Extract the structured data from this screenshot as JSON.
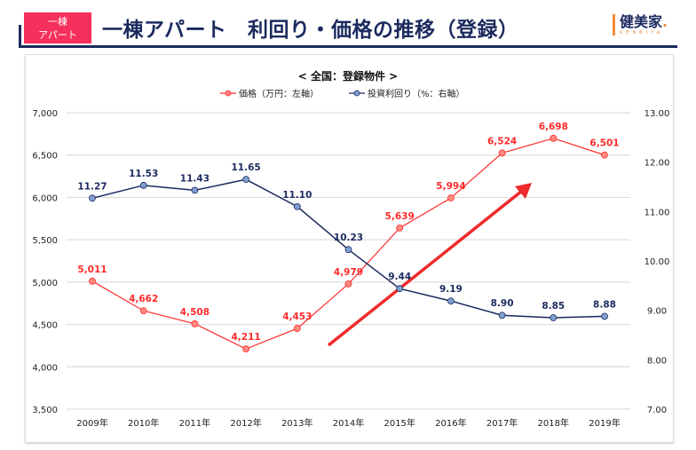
{
  "header": {
    "badge_line1": "一棟",
    "badge_line2": "アパート",
    "title": "一棟アパート　利回り・価格の推移（登録）",
    "logo_text": "健美家",
    "logo_dot": ".",
    "logo_sub": "KENBIYA"
  },
  "colors": {
    "price": "#ff2a2a",
    "yield": "#1b2a5e",
    "arrow": "#f02a2a",
    "header": "#1b2a5e",
    "badge": "#f5305c"
  },
  "chart_data": {
    "type": "line",
    "title": "< 全国：登録物件 >",
    "categories": [
      "2009年",
      "2010年",
      "2011年",
      "2012年",
      "2013年",
      "2014年",
      "2015年",
      "2016年",
      "2017年",
      "2018年",
      "2019年"
    ],
    "series": [
      {
        "name": "価格（万円：左軸）",
        "axis": "left",
        "values": [
          5011,
          4662,
          4508,
          4211,
          4453,
          4979,
          5639,
          5994,
          6524,
          6698,
          6501
        ],
        "labels": [
          "5,011",
          "4,662",
          "4,508",
          "4,211",
          "4,453",
          "4,979",
          "5,639",
          "5,994",
          "6,524",
          "6,698",
          "6,501"
        ]
      },
      {
        "name": "投資利回り（%：右軸）",
        "axis": "right",
        "values": [
          11.27,
          11.53,
          11.43,
          11.65,
          11.1,
          10.23,
          9.44,
          9.19,
          8.9,
          8.85,
          8.88
        ],
        "labels": [
          "11.27",
          "11.53",
          "11.43",
          "11.65",
          "11.10",
          "10.23",
          "9.44",
          "9.19",
          "8.90",
          "8.85",
          "8.88"
        ]
      }
    ],
    "left_axis": {
      "range": [
        3500,
        7000
      ],
      "ticks": [
        "3,500",
        "4,000",
        "4,500",
        "5,000",
        "5,500",
        "6,000",
        "6,500",
        "7,000"
      ]
    },
    "right_axis": {
      "range": [
        7,
        13
      ],
      "ticks": [
        "7.00",
        "8.00",
        "9.00",
        "10.00",
        "11.00",
        "12.00",
        "13.00"
      ]
    },
    "grid": true,
    "legend": "top-center",
    "annotation": "upward-trend-arrow"
  }
}
